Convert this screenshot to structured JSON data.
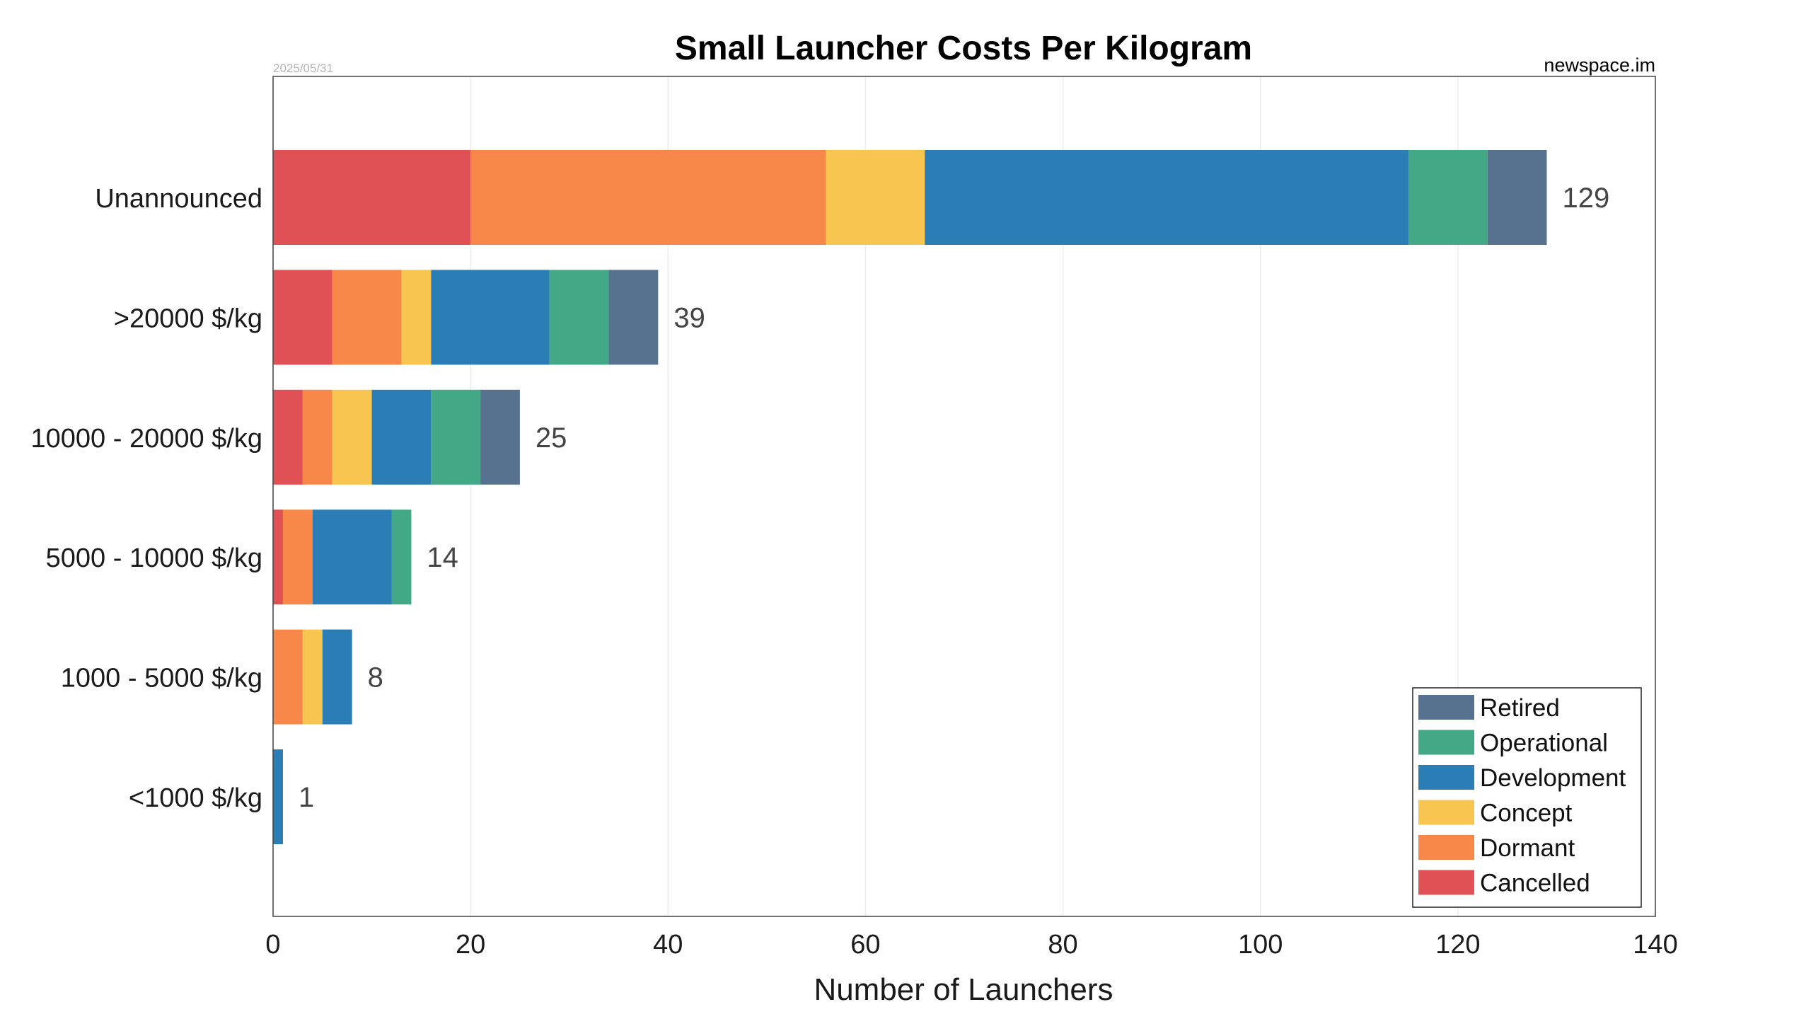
{
  "chart_data": {
    "type": "bar",
    "orientation": "horizontal",
    "stacked": true,
    "title": "Small Launcher Costs Per Kilogram",
    "date_stamp": "2025/05/31",
    "source": "newspace.im",
    "xlabel": "Number of Launchers",
    "ylabel": "",
    "xlim": [
      0,
      140
    ],
    "xticks": [
      0,
      20,
      40,
      60,
      80,
      100,
      120,
      140
    ],
    "grid": "vertical",
    "legend_position": "bottom-right",
    "categories": [
      "Unannounced",
      ">20000 $/kg",
      "10000 - 20000 $/kg",
      "5000 - 10000 $/kg",
      "1000 - 5000 $/kg",
      "<1000 $/kg"
    ],
    "totals": [
      129,
      39,
      25,
      14,
      8,
      1
    ],
    "series": [
      {
        "name": "Cancelled",
        "color": "#e05155",
        "values": [
          20,
          6,
          3,
          1,
          0,
          0
        ]
      },
      {
        "name": "Dormant",
        "color": "#f7884a",
        "values": [
          36,
          7,
          3,
          3,
          3,
          0
        ]
      },
      {
        "name": "Concept",
        "color": "#f8c550",
        "values": [
          10,
          3,
          4,
          0,
          2,
          0
        ]
      },
      {
        "name": "Development",
        "color": "#2a7db5",
        "values": [
          49,
          12,
          6,
          8,
          3,
          1
        ]
      },
      {
        "name": "Operational",
        "color": "#42a886",
        "values": [
          8,
          6,
          5,
          2,
          0,
          0
        ]
      },
      {
        "name": "Retired",
        "color": "#57728f",
        "values": [
          6,
          5,
          4,
          0,
          0,
          0
        ]
      }
    ],
    "legend_order": [
      "Retired",
      "Operational",
      "Development",
      "Concept",
      "Dormant",
      "Cancelled"
    ]
  }
}
